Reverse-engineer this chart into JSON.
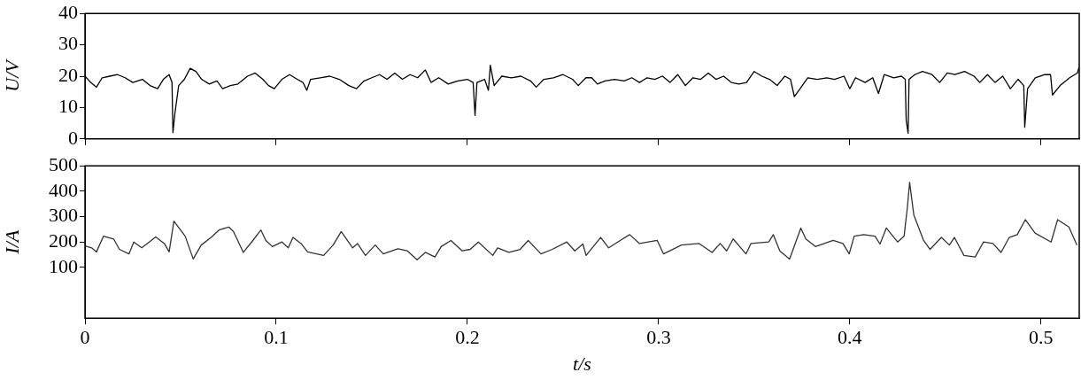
{
  "chart_data": [
    {
      "type": "line",
      "ylabel": "U/V",
      "xlim": [
        0,
        0.52
      ],
      "xticks": [
        0,
        0.1,
        0.2,
        0.3,
        0.4,
        0.5
      ],
      "ylim": [
        0,
        40
      ],
      "yticks": [
        0,
        10,
        20,
        30,
        40
      ],
      "tick_labels": "y",
      "grid": false,
      "legend": false,
      "marker": "none",
      "line_style": "solid",
      "series": [
        {
          "color": "#000000",
          "x": [
            0,
            0.003,
            0.006,
            0.009,
            0.013,
            0.017,
            0.021,
            0.025,
            0.03,
            0.034,
            0.038,
            0.041,
            0.044,
            0.0455,
            0.046,
            0.047,
            0.049,
            0.052,
            0.055,
            0.058,
            0.061,
            0.065,
            0.069,
            0.072,
            0.076,
            0.08,
            0.085,
            0.089,
            0.093,
            0.096,
            0.099,
            0.103,
            0.107,
            0.111,
            0.114,
            0.116,
            0.118,
            0.123,
            0.128,
            0.133,
            0.138,
            0.142,
            0.146,
            0.15,
            0.154,
            0.158,
            0.162,
            0.166,
            0.17,
            0.174,
            0.178,
            0.181,
            0.185,
            0.19,
            0.195,
            0.2,
            0.203,
            0.204,
            0.205,
            0.209,
            0.211,
            0.212,
            0.214,
            0.218,
            0.223,
            0.228,
            0.233,
            0.236,
            0.24,
            0.245,
            0.25,
            0.255,
            0.258,
            0.262,
            0.265,
            0.268,
            0.272,
            0.277,
            0.282,
            0.286,
            0.29,
            0.294,
            0.298,
            0.302,
            0.306,
            0.31,
            0.314,
            0.318,
            0.322,
            0.326,
            0.33,
            0.334,
            0.338,
            0.342,
            0.346,
            0.35,
            0.354,
            0.358,
            0.362,
            0.366,
            0.369,
            0.371,
            0.374,
            0.378,
            0.383,
            0.388,
            0.392,
            0.397,
            0.4,
            0.403,
            0.408,
            0.412,
            0.415,
            0.418,
            0.423,
            0.427,
            0.429,
            0.4295,
            0.4305,
            0.431,
            0.434,
            0.438,
            0.443,
            0.447,
            0.451,
            0.455,
            0.46,
            0.465,
            0.468,
            0.472,
            0.476,
            0.48,
            0.484,
            0.488,
            0.491,
            0.4915,
            0.493,
            0.497,
            0.502,
            0.505,
            0.506,
            0.51,
            0.515,
            0.519,
            0.52
          ],
          "values": [
            20,
            18,
            16.5,
            19.5,
            20,
            20.5,
            19.5,
            18,
            19,
            17,
            16,
            19,
            20.5,
            18,
            2,
            8,
            17,
            19,
            22.5,
            21.5,
            19,
            17.5,
            18.5,
            16,
            17,
            17.5,
            20,
            21,
            19,
            17,
            16,
            19,
            20.5,
            19,
            18,
            15.5,
            19,
            19.5,
            20,
            19,
            17,
            16,
            18.5,
            19.5,
            20.5,
            19,
            21,
            19,
            20.5,
            19.5,
            22,
            18,
            19.5,
            17.5,
            18.5,
            19,
            18,
            7.5,
            18,
            19,
            15.5,
            23.5,
            17,
            20,
            19.5,
            20,
            18.5,
            16.5,
            19,
            19.5,
            20.5,
            19,
            17,
            19.5,
            19.5,
            17.5,
            18.5,
            19,
            18.5,
            19.5,
            18,
            19.5,
            19,
            20,
            18,
            20.5,
            17,
            19.5,
            19,
            21,
            19,
            20,
            18,
            17.5,
            18,
            21.5,
            20,
            19,
            17,
            20,
            19,
            13.5,
            16,
            19.5,
            19,
            19.5,
            19,
            20,
            16,
            19.5,
            18,
            19.5,
            14.5,
            20.5,
            19.5,
            20,
            19,
            6,
            1.8,
            19,
            20.5,
            21.5,
            20.5,
            18,
            21,
            20.5,
            21.5,
            20,
            18,
            20.5,
            18,
            20,
            16,
            19,
            17,
            3.7,
            16,
            19.5,
            20.5,
            20.5,
            14,
            17,
            19.5,
            21,
            23
          ]
        }
      ]
    },
    {
      "type": "line",
      "xlabel": "t/s",
      "ylabel": "I/A",
      "xlim": [
        0,
        0.52
      ],
      "xticks": [
        0,
        0.1,
        0.2,
        0.3,
        0.4,
        0.5
      ],
      "ylim": [
        -100,
        500
      ],
      "yticks": [
        100,
        200,
        300,
        400,
        500
      ],
      "grid": false,
      "legend": false,
      "marker": "none",
      "line_style": "solid",
      "series": [
        {
          "color": "#333333",
          "x": [
            0,
            0.0035,
            0.006,
            0.0097,
            0.015,
            0.018,
            0.023,
            0.0255,
            0.0297,
            0.037,
            0.0415,
            0.044,
            0.0465,
            0.0524,
            0.0566,
            0.0608,
            0.066,
            0.0701,
            0.0752,
            0.0777,
            0.0828,
            0.0878,
            0.092,
            0.0946,
            0.098,
            0.103,
            0.1063,
            0.1088,
            0.113,
            0.1164,
            0.1248,
            0.1298,
            0.134,
            0.14,
            0.1425,
            0.1467,
            0.1518,
            0.156,
            0.1636,
            0.1686,
            0.1737,
            0.178,
            0.183,
            0.1863,
            0.1914,
            0.1973,
            0.2015,
            0.2057,
            0.2133,
            0.2158,
            0.2217,
            0.2276,
            0.2318,
            0.2385,
            0.2444,
            0.252,
            0.2562,
            0.2604,
            0.2621,
            0.2697,
            0.2739,
            0.2799,
            0.2849,
            0.29,
            0.2993,
            0.3026,
            0.3119,
            0.3212,
            0.328,
            0.3322,
            0.3356,
            0.339,
            0.3457,
            0.3483,
            0.3576,
            0.36,
            0.3634,
            0.3685,
            0.3744,
            0.377,
            0.382,
            0.3913,
            0.3964,
            0.3997,
            0.4023,
            0.4073,
            0.4132,
            0.4158,
            0.4191,
            0.425,
            0.4284,
            0.4301,
            0.4313,
            0.4335,
            0.4386,
            0.442,
            0.4479,
            0.4521,
            0.4547,
            0.4597,
            0.4656,
            0.4699,
            0.4749,
            0.4791,
            0.4834,
            0.4876,
            0.4918,
            0.4969,
            0.5053,
            0.5087,
            0.5146,
            0.5188
          ],
          "values": [
            185,
            177,
            161,
            223,
            212,
            171,
            153,
            200,
            177,
            220,
            194,
            161,
            282,
            223,
            133,
            188,
            218,
            247,
            259,
            241,
            159,
            206,
            247,
            206,
            182,
            200,
            177,
            218,
            194,
            161,
            147,
            188,
            241,
            177,
            194,
            147,
            188,
            153,
            173,
            165,
            130,
            159,
            141,
            182,
            206,
            165,
            171,
            200,
            147,
            177,
            159,
            171,
            206,
            153,
            171,
            200,
            165,
            192,
            147,
            218,
            177,
            206,
            229,
            194,
            206,
            153,
            188,
            194,
            159,
            194,
            165,
            212,
            153,
            194,
            200,
            229,
            165,
            133,
            255,
            212,
            182,
            206,
            194,
            153,
            223,
            229,
            223,
            192,
            255,
            200,
            223,
            335,
            435,
            306,
            206,
            171,
            218,
            188,
            218,
            147,
            141,
            200,
            194,
            159,
            218,
            229,
            288,
            235,
            200,
            288,
            259,
            188
          ]
        }
      ]
    }
  ]
}
